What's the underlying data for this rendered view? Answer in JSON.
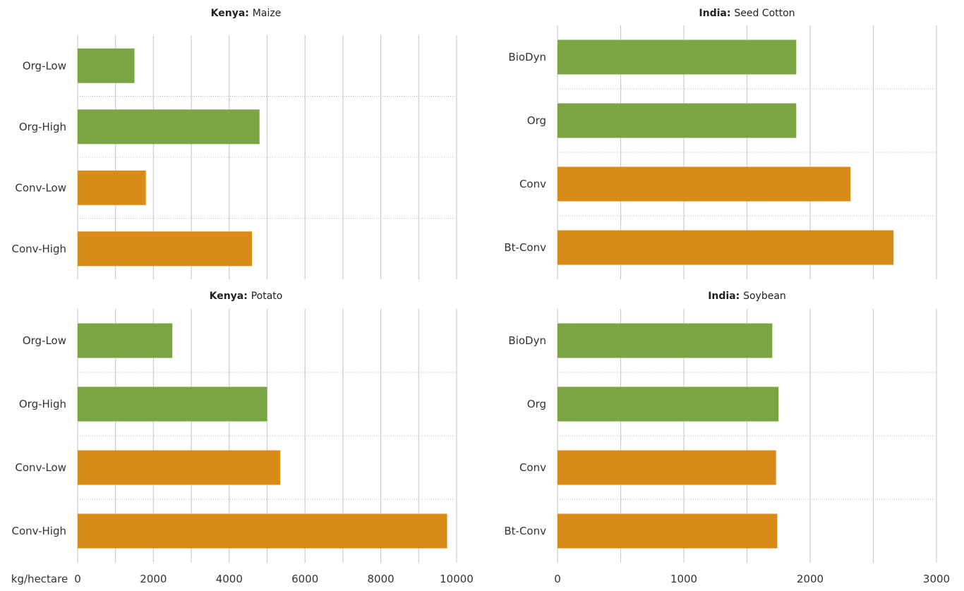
{
  "colors": {
    "organic": "#7aa543",
    "conventional": "#d98b17",
    "grid": "#cccccc",
    "text": "#333333"
  },
  "axis_unit_label": "kg/hectare",
  "chart_data": [
    {
      "id": "kenya-maize",
      "type": "bar",
      "orientation": "horizontal",
      "title_country": "Kenya:",
      "title_crop": "Maize",
      "categories": [
        "Org-Low",
        "Org-High",
        "Conv-Low",
        "Conv-High"
      ],
      "values": [
        1500,
        4800,
        1800,
        4600
      ],
      "bar_colors": [
        "organic",
        "organic",
        "conventional",
        "conventional"
      ],
      "xlim": [
        0,
        10000
      ],
      "xticks": [],
      "grid": true
    },
    {
      "id": "india-seed-cotton",
      "type": "bar",
      "orientation": "horizontal",
      "title_country": "India:",
      "title_crop": "Seed Cotton",
      "categories": [
        "BioDyn",
        "Org",
        "Conv",
        "Bt-Conv"
      ],
      "values": [
        1890,
        1890,
        2320,
        2660
      ],
      "bar_colors": [
        "organic",
        "organic",
        "conventional",
        "conventional"
      ],
      "xlim": [
        0,
        3000
      ],
      "xticks": [],
      "grid": true
    },
    {
      "id": "kenya-potato",
      "type": "bar",
      "orientation": "horizontal",
      "title_country": "Kenya:",
      "title_crop": "Potato",
      "categories": [
        "Org-Low",
        "Org-High",
        "Conv-Low",
        "Conv-High"
      ],
      "values": [
        2500,
        5000,
        5350,
        9750
      ],
      "bar_colors": [
        "organic",
        "organic",
        "conventional",
        "conventional"
      ],
      "xlim": [
        0,
        10000
      ],
      "xticks": [
        0,
        2000,
        4000,
        6000,
        8000,
        10000
      ],
      "grid": true
    },
    {
      "id": "india-soybean",
      "type": "bar",
      "orientation": "horizontal",
      "title_country": "India:",
      "title_crop": "Soybean",
      "categories": [
        "BioDyn",
        "Org",
        "Conv",
        "Bt-Conv"
      ],
      "values": [
        1700,
        1750,
        1730,
        1740
      ],
      "bar_colors": [
        "organic",
        "organic",
        "conventional",
        "conventional"
      ],
      "xlim": [
        0,
        3000
      ],
      "xticks": [
        0,
        1000,
        2000,
        3000
      ],
      "grid": true
    }
  ]
}
